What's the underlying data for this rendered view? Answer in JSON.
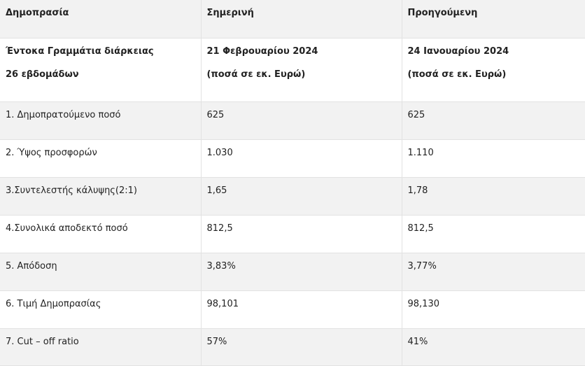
{
  "header": {
    "col1": "Δημοπρασία",
    "col2": "Σημερινή",
    "col3": "Προηγούμενη"
  },
  "subheader": {
    "col1_line1": "Έντοκα Γραμμάτια διάρκειας",
    "col1_line2": "26 εβδομάδων",
    "col2_line1": "21 Φεβρουαρίου 2024",
    "col2_line2": "(ποσά σε εκ. Ευρώ)",
    "col3_line1": "24 Ιανουαρίου 2024",
    "col3_line2": "(ποσά σε εκ. Ευρώ)"
  },
  "rows": [
    {
      "label": "1. Δημοπρατούμενο ποσό",
      "current": "625",
      "previous": "625"
    },
    {
      "label": "2. Ύψος προσφορών",
      "current": "1.030",
      "previous": "1.110"
    },
    {
      "label": "3.Συντελεστής κάλυψης(2:1)",
      "current": "1,65",
      "previous": "1,78"
    },
    {
      "label": "4.Συνολικά αποδεκτό ποσό",
      "current": "812,5",
      "previous": "812,5"
    },
    {
      "label": "5. Απόδοση",
      "current": "3,83%",
      "previous": "3,77%"
    },
    {
      "label": "6. Τιμή Δημοπρασίας",
      "current": "98,101",
      "previous": "98,130"
    },
    {
      "label": "7. Cut – off ratio",
      "current": "57%",
      "previous": "41%"
    }
  ]
}
